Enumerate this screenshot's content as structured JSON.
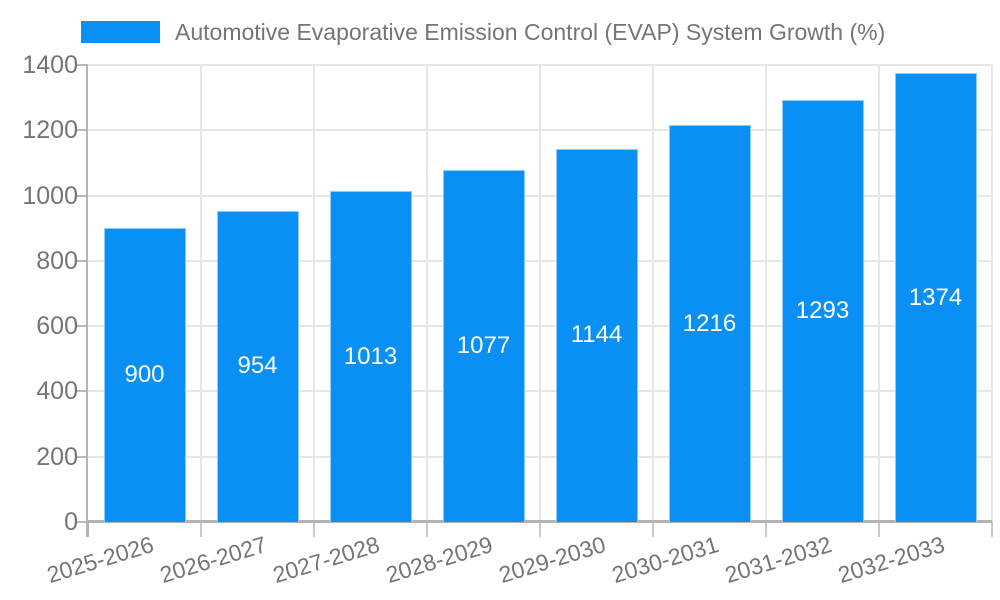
{
  "legend": {
    "label": "Automotive Evaporative Emission Control (EVAP) System Growth (%)"
  },
  "colors": {
    "bar": "#0a90f5",
    "bar_edge": "#8ecdf9",
    "grid": "#e6e6e6",
    "axis": "#b3b3b3",
    "y_tick": "#b9b9b9",
    "x_tick": "#c9c9c9",
    "axis_text": "#757575",
    "value_label_text": "#ffffff",
    "background": "#ffffff"
  },
  "chart_data": {
    "type": "bar",
    "title": "",
    "xlabel": "",
    "ylabel": "",
    "categories": [
      "2025-2026",
      "2026-2027",
      "2027-2028",
      "2028-2029",
      "2029-2030",
      "2030-2031",
      "2031-2032",
      "2032-2033"
    ],
    "series": [
      {
        "name": "Automotive Evaporative Emission Control (EVAP) System Growth (%)",
        "values": [
          900,
          954,
          1013,
          1077,
          1144,
          1216,
          1293,
          1374
        ]
      }
    ],
    "value_labels": [
      "900",
      "954",
      "1013",
      "1077",
      "1144",
      "1216",
      "1293",
      "1374"
    ],
    "value_label_position": "inside-center",
    "ylim": [
      0,
      1400
    ],
    "yticks": [
      0,
      200,
      400,
      600,
      800,
      1000,
      1200,
      1400
    ],
    "grid": "both",
    "legend_position": "top-left",
    "x_label_rotation_deg": -17
  }
}
